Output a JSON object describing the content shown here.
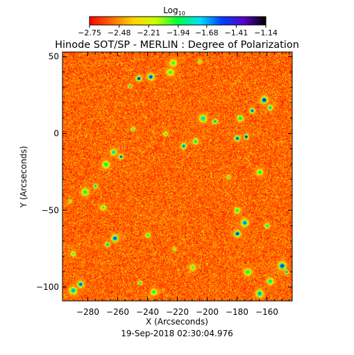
{
  "chart_data": {
    "type": "heatmap",
    "title": "Hinode SOT/SP - MERLIN : Degree of Polarization",
    "xlabel": "X (Arcseconds)",
    "ylabel": "Y (Arcseconds)",
    "footer": "19-Sep-2018 02:30:04.976",
    "xlim": [
      -297,
      -143
    ],
    "ylim": [
      -109,
      53
    ],
    "x_ticks": [
      -280,
      -260,
      -240,
      -220,
      -200,
      -180,
      -160
    ],
    "y_ticks": [
      50,
      0,
      -50,
      -100
    ],
    "x_tick_labels": [
      "−280",
      "−260",
      "−240",
      "−220",
      "−200",
      "−180",
      "−160"
    ],
    "y_tick_labels": [
      "50",
      "0",
      "−50",
      "−100"
    ],
    "colorbar": {
      "title_main": "Log",
      "title_sub": "10",
      "min": -2.75,
      "max": -1.14,
      "scale": "log10",
      "ticks": [
        -2.75,
        -2.48,
        -2.21,
        -1.94,
        -1.68,
        -1.41,
        -1.14
      ],
      "tick_labels": [
        "−2.75",
        "−2.48",
        "−2.21",
        "−1.94",
        "−1.68",
        "−1.41",
        "−1.14"
      ],
      "colormap": [
        "#ff0000",
        "#ff6a00",
        "#ffd400",
        "#c8ff00",
        "#00ff3c",
        "#00e0ff",
        "#0040ff",
        "#5a00c8",
        "#000000"
      ]
    },
    "field_background_level": -2.6,
    "field_noise_range": [
      -2.75,
      -2.25
    ],
    "polarization_patches": [
      {
        "x": -246,
        "y": 36,
        "peak": -1.2
      },
      {
        "x": -238,
        "y": 37,
        "peak": -1.3
      },
      {
        "x": -252,
        "y": 31,
        "peak": -1.6
      },
      {
        "x": -223,
        "y": 46,
        "peak": -1.9
      },
      {
        "x": -225,
        "y": 40,
        "peak": -1.9
      },
      {
        "x": -205,
        "y": 47,
        "peak": -1.9
      },
      {
        "x": -162,
        "y": 22,
        "peak": -1.2
      },
      {
        "x": -170,
        "y": 15,
        "peak": -1.4
      },
      {
        "x": -158,
        "y": 17,
        "peak": -1.6
      },
      {
        "x": -203,
        "y": 10,
        "peak": -1.7
      },
      {
        "x": -195,
        "y": 8,
        "peak": -1.6
      },
      {
        "x": -178,
        "y": 10,
        "peak": -1.7
      },
      {
        "x": -250,
        "y": 3,
        "peak": -1.8
      },
      {
        "x": -228,
        "y": 0,
        "peak": -1.9
      },
      {
        "x": -174,
        "y": -2,
        "peak": -1.1
      },
      {
        "x": -180,
        "y": -3,
        "peak": -1.4
      },
      {
        "x": -216,
        "y": -8,
        "peak": -1.5
      },
      {
        "x": -208,
        "y": -5,
        "peak": -1.7
      },
      {
        "x": -258,
        "y": -15,
        "peak": -1.3
      },
      {
        "x": -263,
        "y": -12,
        "peak": -1.7
      },
      {
        "x": -268,
        "y": -20,
        "peak": -1.8
      },
      {
        "x": -165,
        "y": -25,
        "peak": -1.8
      },
      {
        "x": -186,
        "y": -28,
        "peak": -1.8
      },
      {
        "x": -275,
        "y": -34,
        "peak": -1.6
      },
      {
        "x": -282,
        "y": -38,
        "peak": -1.8
      },
      {
        "x": -292,
        "y": -44,
        "peak": -1.9
      },
      {
        "x": -270,
        "y": -48,
        "peak": -1.9
      },
      {
        "x": -180,
        "y": -50,
        "peak": -1.8
      },
      {
        "x": -175,
        "y": -58,
        "peak": -1.5
      },
      {
        "x": -180,
        "y": -65,
        "peak": -1.3
      },
      {
        "x": -160,
        "y": -60,
        "peak": -1.7
      },
      {
        "x": -262,
        "y": -68,
        "peak": -1.4
      },
      {
        "x": -267,
        "y": -72,
        "peak": -1.6
      },
      {
        "x": -240,
        "y": -66,
        "peak": -1.8
      },
      {
        "x": -222,
        "y": -75,
        "peak": -1.9
      },
      {
        "x": -290,
        "y": -78,
        "peak": -1.9
      },
      {
        "x": -150,
        "y": -86,
        "peak": -1.3
      },
      {
        "x": -147,
        "y": -90,
        "peak": -1.5
      },
      {
        "x": -173,
        "y": -90,
        "peak": -1.8
      },
      {
        "x": -210,
        "y": -87,
        "peak": -1.9
      },
      {
        "x": -285,
        "y": -98,
        "peak": -1.4
      },
      {
        "x": -290,
        "y": -102,
        "peak": -1.6
      },
      {
        "x": -245,
        "y": -97,
        "peak": -1.7
      },
      {
        "x": -236,
        "y": -103,
        "peak": -1.8
      },
      {
        "x": -165,
        "y": -104,
        "peak": -1.6
      },
      {
        "x": -158,
        "y": -96,
        "peak": -1.7
      }
    ]
  }
}
